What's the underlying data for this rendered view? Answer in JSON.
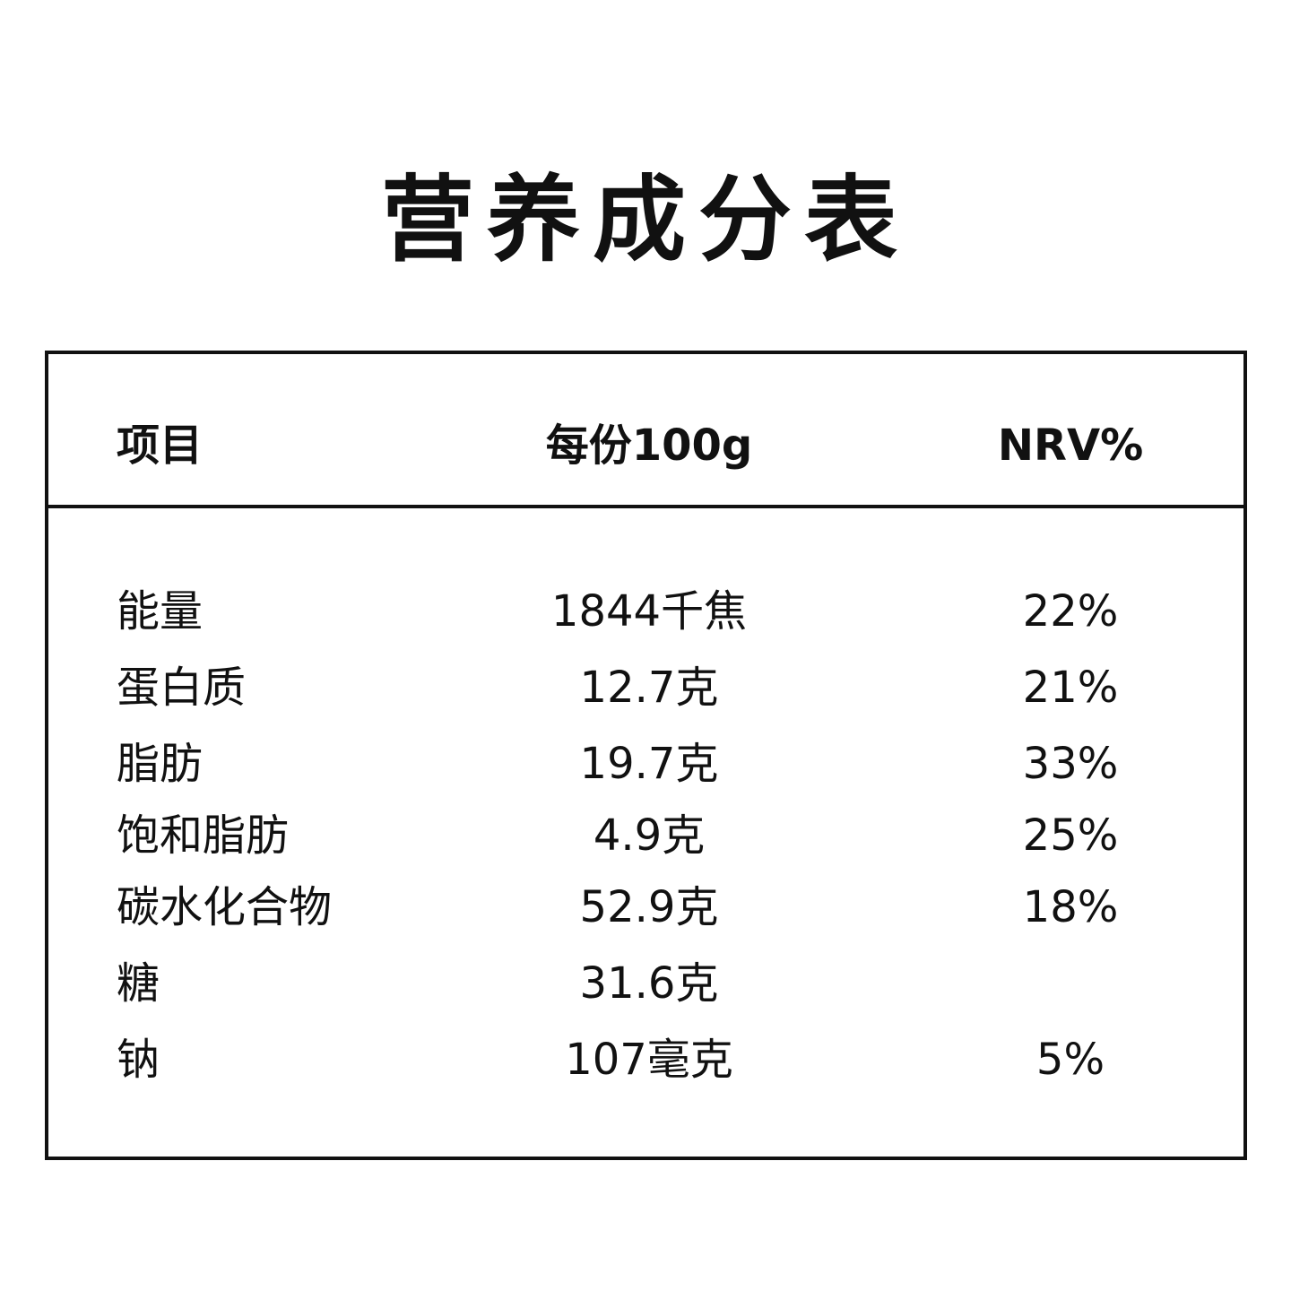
{
  "title": "营养成分表",
  "table": {
    "headers": [
      "项目",
      "每份100g",
      "NRV%"
    ],
    "rows": [
      {
        "item": "能量",
        "amount": "1844千焦",
        "nrv": "22%"
      },
      {
        "item": "蛋白质",
        "amount": "12.7克",
        "nrv": "21%"
      },
      {
        "item": "脂肪",
        "amount": "19.7克",
        "nrv": "33%"
      },
      {
        "item": "饱和脂肪",
        "amount": "4.9克",
        "nrv": "25%"
      },
      {
        "item": "碳水化合物",
        "amount": "52.9克",
        "nrv": "18%"
      },
      {
        "item": "糖",
        "amount": "31.6克",
        "nrv": ""
      },
      {
        "item": "钠",
        "amount": "107毫克",
        "nrv": "5%"
      }
    ]
  }
}
